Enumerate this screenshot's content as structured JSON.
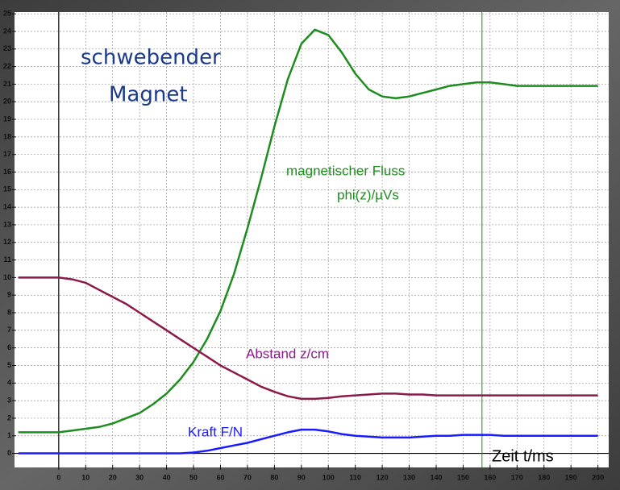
{
  "chart_data": {
    "type": "line",
    "title_lines": [
      "schwebender",
      "Magnet"
    ],
    "annotations": [
      "magnetischer Fluss",
      "phi(z)/µVs",
      "Abstand z/cm",
      "Kraft F/N",
      "Zeit t/ms"
    ],
    "x": [
      -15,
      0,
      5,
      10,
      15,
      20,
      25,
      30,
      35,
      40,
      45,
      50,
      55,
      60,
      65,
      70,
      75,
      80,
      85,
      90,
      95,
      100,
      105,
      110,
      115,
      120,
      125,
      130,
      135,
      140,
      145,
      150,
      155,
      160,
      165,
      170,
      175,
      180,
      185,
      190,
      195,
      200
    ],
    "series": [
      {
        "name": "magnetischer Fluss",
        "color": "#1f8c1f",
        "values": [
          1.2,
          1.2,
          1.3,
          1.4,
          1.5,
          1.7,
          2.0,
          2.3,
          2.8,
          3.4,
          4.2,
          5.2,
          6.5,
          8.1,
          10.2,
          12.8,
          15.6,
          18.6,
          21.3,
          23.3,
          24.1,
          23.8,
          22.8,
          21.6,
          20.7,
          20.3,
          20.2,
          20.3,
          20.5,
          20.7,
          20.9,
          21.0,
          21.1,
          21.1,
          21.0,
          20.9,
          20.9,
          20.9,
          20.9,
          20.9,
          20.9,
          20.9
        ]
      },
      {
        "name": "Abstand z/cm",
        "color": "#8b1a4a",
        "values": [
          10,
          10,
          9.9,
          9.7,
          9.3,
          8.9,
          8.5,
          8.0,
          7.5,
          7.0,
          6.5,
          6.0,
          5.5,
          5.0,
          4.6,
          4.2,
          3.8,
          3.5,
          3.25,
          3.1,
          3.1,
          3.15,
          3.25,
          3.3,
          3.35,
          3.4,
          3.4,
          3.35,
          3.35,
          3.3,
          3.3,
          3.3,
          3.3,
          3.3,
          3.3,
          3.3,
          3.3,
          3.3,
          3.3,
          3.3,
          3.3,
          3.3
        ]
      },
      {
        "name": "Kraft F/N",
        "color": "#1a1aff",
        "values": [
          0,
          0,
          0,
          0,
          0,
          0,
          0,
          0,
          0,
          0,
          0,
          0.05,
          0.15,
          0.3,
          0.45,
          0.6,
          0.8,
          1.0,
          1.2,
          1.35,
          1.35,
          1.25,
          1.1,
          1.0,
          0.95,
          0.9,
          0.9,
          0.9,
          0.95,
          1.0,
          1.0,
          1.05,
          1.05,
          1.05,
          1.0,
          1.0,
          1.0,
          1.0,
          1.0,
          1.0,
          1.0,
          1.0
        ]
      }
    ],
    "cursor_x": 157,
    "xlim": [
      -16.4,
      204
    ],
    "ylim": [
      -0.8,
      25.1
    ],
    "xticks": [
      0,
      10,
      20,
      30,
      40,
      50,
      60,
      70,
      80,
      90,
      100,
      110,
      120,
      130,
      140,
      150,
      160,
      170,
      180,
      190,
      200
    ],
    "yticks": [
      0,
      1,
      2,
      3,
      4,
      5,
      6,
      7,
      8,
      9,
      10,
      11,
      12,
      13,
      14,
      15,
      16,
      17,
      18,
      19,
      20,
      21,
      22,
      23,
      24,
      25
    ],
    "grid": true
  }
}
